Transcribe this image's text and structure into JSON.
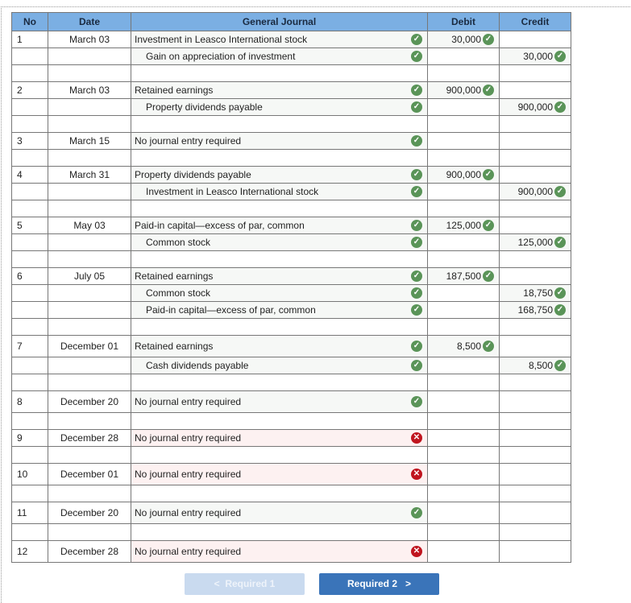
{
  "headers": {
    "no": "No",
    "date": "Date",
    "journal": "General Journal",
    "debit": "Debit",
    "credit": "Credit"
  },
  "rows": [
    {
      "no": "1",
      "date": "March 03",
      "account": "Investment in Leasco International stock",
      "indent": false,
      "status": "correct",
      "debit": "30,000",
      "credit": ""
    },
    {
      "no": "",
      "date": "",
      "account": "Gain on appreciation of investment",
      "indent": true,
      "status": "correct",
      "debit": "",
      "credit": "30,000"
    },
    {
      "blank": true
    },
    {
      "no": "2",
      "date": "March 03",
      "account": "Retained earnings",
      "indent": false,
      "status": "correct",
      "debit": "900,000",
      "credit": ""
    },
    {
      "no": "",
      "date": "",
      "account": "Property dividends payable",
      "indent": true,
      "status": "correct",
      "debit": "",
      "credit": "900,000"
    },
    {
      "blank": true
    },
    {
      "no": "3",
      "date": "March 15",
      "account": "No journal entry required",
      "indent": false,
      "status": "correct",
      "debit": "",
      "credit": ""
    },
    {
      "blank": true
    },
    {
      "no": "4",
      "date": "March 31",
      "account": "Property dividends payable",
      "indent": false,
      "status": "correct",
      "debit": "900,000",
      "credit": ""
    },
    {
      "no": "",
      "date": "",
      "account": "Investment in Leasco International stock",
      "indent": true,
      "status": "correct",
      "debit": "",
      "credit": "900,000"
    },
    {
      "blank": true
    },
    {
      "no": "5",
      "date": "May 03",
      "account": "Paid-in capital—excess of par, common",
      "indent": false,
      "status": "correct",
      "debit": "125,000",
      "credit": ""
    },
    {
      "no": "",
      "date": "",
      "account": "Common stock",
      "indent": true,
      "status": "correct",
      "debit": "",
      "credit": "125,000"
    },
    {
      "blank": true
    },
    {
      "no": "6",
      "date": "July 05",
      "account": "Retained earnings",
      "indent": false,
      "status": "correct",
      "debit": "187,500",
      "credit": ""
    },
    {
      "no": "",
      "date": "",
      "account": "Common stock",
      "indent": true,
      "status": "correct",
      "debit": "",
      "credit": "18,750"
    },
    {
      "no": "",
      "date": "",
      "account": "Paid-in capital—excess of par, common",
      "indent": true,
      "status": "correct",
      "debit": "",
      "credit": "168,750"
    },
    {
      "blank": true
    },
    {
      "no": "7",
      "date": "December 01",
      "account": "Retained earnings",
      "indent": false,
      "status": "correct",
      "debit": "8,500",
      "credit": ""
    },
    {
      "no": "",
      "date": "",
      "account": "Cash dividends payable",
      "indent": true,
      "status": "correct",
      "debit": "",
      "credit": "8,500"
    },
    {
      "blank": true
    },
    {
      "no": "8",
      "date": "December 20",
      "account": "No journal entry required",
      "indent": false,
      "status": "correct",
      "debit": "",
      "credit": ""
    },
    {
      "blank": true
    },
    {
      "no": "9",
      "date": "December 28",
      "account": "No journal entry required",
      "indent": false,
      "status": "incorrect",
      "debit": "",
      "credit": ""
    },
    {
      "blank": true
    },
    {
      "no": "10",
      "date": "December 01",
      "account": "No journal entry required",
      "indent": false,
      "status": "incorrect",
      "debit": "",
      "credit": ""
    },
    {
      "blank": true
    },
    {
      "no": "11",
      "date": "December 20",
      "account": "No journal entry required",
      "indent": false,
      "status": "correct",
      "debit": "",
      "credit": ""
    },
    {
      "blank": true
    },
    {
      "no": "12",
      "date": "December 28",
      "account": "No journal entry required",
      "indent": false,
      "status": "incorrect",
      "debit": "",
      "credit": ""
    }
  ],
  "nav": {
    "prev": "Required 1",
    "next": "Required 2"
  },
  "colors": {
    "header": "#7bafe3",
    "correct": "#5a9458",
    "incorrect": "#c0151f",
    "button": "#3a74b9"
  }
}
